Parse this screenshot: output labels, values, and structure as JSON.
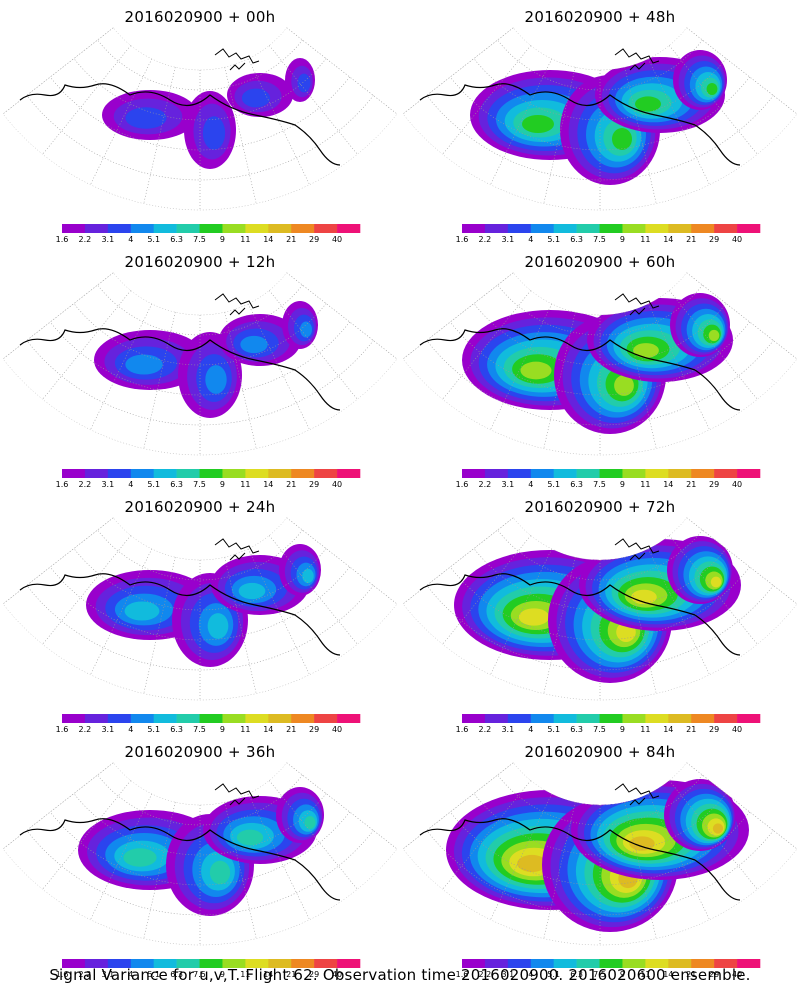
{
  "figure": {
    "caption": "Signal Variance for u,v,T. Flight 62. Observation time 2016020900. 2016020600 ensemble.",
    "colorbar": {
      "tick_labels": [
        "1.6",
        "2.2",
        "3.1",
        "4",
        "5.1",
        "6.3",
        "7.5",
        "9",
        "11",
        "14",
        "21",
        "29",
        "40"
      ],
      "colors": [
        "#9900cc",
        "#6622dd",
        "#2b44ee",
        "#1188ee",
        "#11bbdd",
        "#22ccaa",
        "#22cc22",
        "#99dd22",
        "#dddd22",
        "#ddbb22",
        "#ee8822",
        "#ee4444",
        "#ee1177"
      ]
    },
    "panels": [
      {
        "title": "2016020900 + 00h"
      },
      {
        "title": "2016020900 + 48h"
      },
      {
        "title": "2016020900 + 12h"
      },
      {
        "title": "2016020900 + 60h"
      },
      {
        "title": "2016020900 + 24h"
      },
      {
        "title": "2016020900 + 72h"
      },
      {
        "title": "2016020900 + 36h"
      },
      {
        "title": "2016020900 + 84h"
      }
    ]
  }
}
